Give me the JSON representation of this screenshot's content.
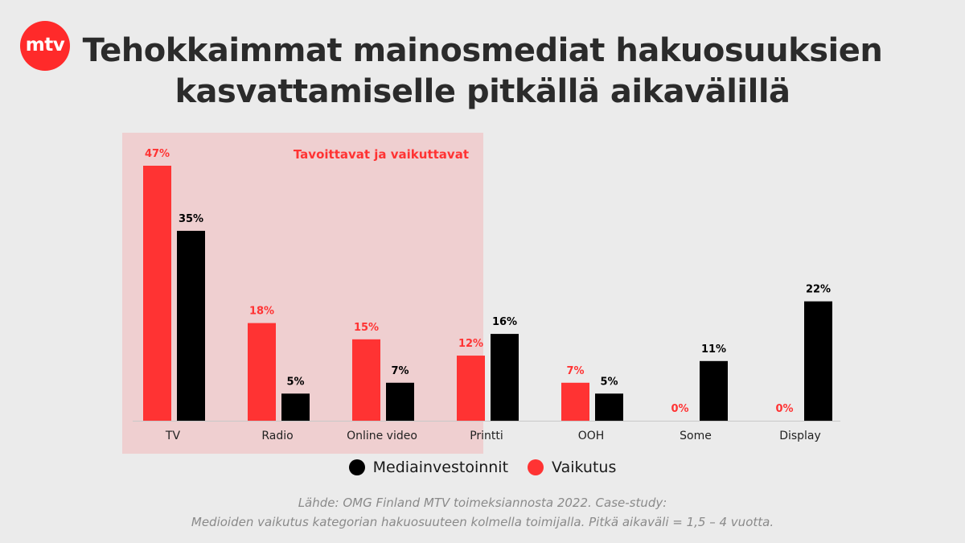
{
  "logo": {
    "text": "mtv"
  },
  "title": {
    "line1": "Tehokkaimmat mainosmediat hakuosuuksien",
    "line2": "kasvattamiselle pitkällä aikavälillä"
  },
  "colors": {
    "vaikutus": "#ff3333",
    "mediainvestoinnit": "#000000",
    "highlight_bg": "#efcfd0"
  },
  "chart_data": {
    "type": "bar",
    "categories": [
      "TV",
      "Radio",
      "Online video",
      "Printti",
      "OOH",
      "Some",
      "Display"
    ],
    "series": [
      {
        "name": "Vaikutus",
        "values": [
          47,
          18,
          15,
          12,
          7,
          0,
          0
        ],
        "labels": [
          "47%",
          "18%",
          "15%",
          "12%",
          "7%",
          "0%",
          "0%"
        ]
      },
      {
        "name": "Mediainvestoinnit",
        "values": [
          35,
          5,
          7,
          16,
          5,
          11,
          22
        ],
        "labels": [
          "35%",
          "5%",
          "7%",
          "16%",
          "5%",
          "11%",
          "22%"
        ]
      }
    ],
    "ylim": [
      0,
      50
    ],
    "highlight": {
      "label": "Tavoittavat ja vaikuttavat",
      "categories": [
        "TV",
        "Radio",
        "Online video"
      ]
    },
    "legend": [
      "Mediainvestoinnit",
      "Vaikutus"
    ],
    "grid": false
  },
  "source": {
    "line1": "Lähde: OMG Finland MTV toimeksiannosta 2022. Case-study:",
    "line2": "Medioiden vaikutus kategorian hakuosuuteen kolmella toimijalla. Pitkä aikaväli = 1,5 – 4 vuotta."
  }
}
